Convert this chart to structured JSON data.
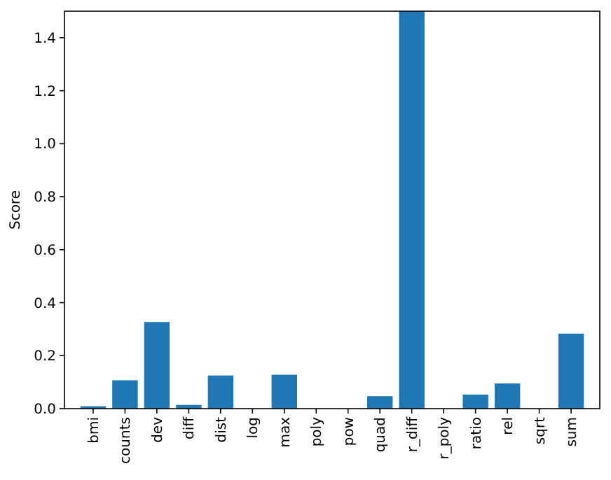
{
  "chart_data": {
    "type": "bar",
    "ylabel": "Score",
    "categories": [
      "bmi",
      "counts",
      "dev",
      "diff",
      "dist",
      "log",
      "max",
      "poly",
      "pow",
      "quad",
      "r_diff",
      "r_poly",
      "ratio",
      "rel",
      "sqrt",
      "sum"
    ],
    "values": [
      0.009,
      0.107,
      0.327,
      0.014,
      0.125,
      0,
      0.128,
      0,
      0,
      0.047,
      1.5,
      0,
      0.053,
      0.095,
      0,
      0.283
    ],
    "color": "#1f77b4",
    "ylim": [
      0,
      1.5
    ],
    "yticks": [
      {
        "value": 0,
        "label": "0.0"
      },
      {
        "value": 0.2,
        "label": "0.2"
      },
      {
        "value": 0.4,
        "label": "0.4"
      },
      {
        "value": 0.6,
        "label": "0.6"
      },
      {
        "value": 0.8,
        "label": "0.8"
      },
      {
        "value": 1,
        "label": "1.0"
      },
      {
        "value": 1.2,
        "label": "1.2"
      },
      {
        "value": 1.4,
        "label": "1.4"
      }
    ],
    "grid": false
  }
}
